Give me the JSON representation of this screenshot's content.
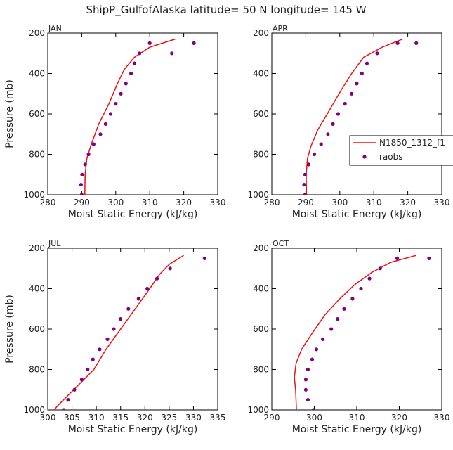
{
  "figure_title": "ShipP_GulfofAlaska  latitude= 50 N longitude= 145 W",
  "colors": {
    "model": "#ee1111",
    "raobs": "#800080",
    "axis": "#000000"
  },
  "legend": {
    "placement": "right of APR panel",
    "model_label": "N1850_1312_f1",
    "obs_label": "raobs"
  },
  "chart_data": [
    {
      "type": "line",
      "month": "JAN",
      "xlabel": "Moist Static Energy (kJ/kg)",
      "ylabel": "Pressure (mb)",
      "xlim": [
        280,
        330
      ],
      "xticks": [
        280,
        290,
        300,
        310,
        320,
        330
      ],
      "ylim": [
        200,
        1000
      ],
      "yticks": [
        200,
        400,
        600,
        800,
        1000
      ],
      "y_inverted": true,
      "series": [
        {
          "name": "N1850_1312_f1",
          "kind": "line",
          "x": [
            290.9,
            291.0,
            291.5,
            292.8,
            295.0,
            298.0,
            300.5,
            302.5,
            305.5,
            310.0,
            317.5
          ],
          "y": [
            1000,
            900,
            820,
            750,
            650,
            550,
            450,
            380,
            320,
            270,
            230
          ]
        },
        {
          "name": "raobs",
          "kind": "markers",
          "x": [
            290.0,
            289.8,
            290.1,
            291.0,
            292.0,
            293.5,
            295.5,
            297.0,
            298.5,
            300.0,
            301.5,
            303.0,
            304.5,
            305.5,
            307.0,
            310.0,
            316.5,
            323.0
          ],
          "y": [
            1000,
            950,
            900,
            850,
            800,
            750,
            700,
            650,
            600,
            550,
            500,
            450,
            400,
            350,
            300,
            250,
            300,
            250
          ]
        }
      ]
    },
    {
      "type": "line",
      "month": "APR",
      "xlabel": "Moist Static Energy (kJ/kg)",
      "ylabel": "",
      "xlim": [
        280,
        330
      ],
      "xticks": [
        280,
        290,
        300,
        310,
        320,
        330
      ],
      "ylim": [
        200,
        1000
      ],
      "yticks": [
        200,
        400,
        600,
        800,
        1000
      ],
      "y_inverted": true,
      "series": [
        {
          "name": "N1850_1312_f1",
          "kind": "line",
          "x": [
            290.2,
            290.1,
            290.5,
            291.5,
            293.5,
            297.0,
            300.5,
            303.5,
            307.0,
            312.5,
            318.5
          ],
          "y": [
            1000,
            900,
            820,
            760,
            680,
            580,
            480,
            400,
            320,
            270,
            230
          ]
        },
        {
          "name": "raobs",
          "kind": "markers",
          "x": [
            289.8,
            289.5,
            289.8,
            290.8,
            292.5,
            294.5,
            296.5,
            298.0,
            299.5,
            301.5,
            303.5,
            305.0,
            306.5,
            308.0,
            311.0,
            317.0,
            322.5
          ],
          "y": [
            1000,
            950,
            900,
            850,
            800,
            750,
            700,
            650,
            600,
            550,
            500,
            450,
            400,
            350,
            300,
            250,
            250
          ]
        }
      ]
    },
    {
      "type": "line",
      "month": "JUL",
      "xlabel": "Moist Static Energy (kJ/kg)",
      "ylabel": "Pressure (mb)",
      "xlim": [
        300,
        335
      ],
      "xticks": [
        300,
        305,
        310,
        315,
        320,
        325,
        330,
        335
      ],
      "ylim": [
        200,
        1000
      ],
      "yticks": [
        200,
        400,
        600,
        800,
        1000
      ],
      "y_inverted": true,
      "series": [
        {
          "name": "N1850_1312_f1",
          "kind": "line",
          "x": [
            301.0,
            302.0,
            304.5,
            307.0,
            309.5,
            312.0,
            315.0,
            318.0,
            321.0,
            323.0,
            325.0,
            328.0
          ],
          "y": [
            1010,
            980,
            920,
            860,
            800,
            700,
            600,
            500,
            400,
            330,
            280,
            235
          ]
        },
        {
          "name": "raobs",
          "kind": "markers",
          "x": [
            303.3,
            304.2,
            305.5,
            307.0,
            308.2,
            309.3,
            310.7,
            312.3,
            313.6,
            315.0,
            316.6,
            318.7,
            320.5,
            322.5,
            325.2,
            332.3
          ],
          "y": [
            1000,
            950,
            900,
            850,
            800,
            750,
            700,
            650,
            600,
            550,
            500,
            450,
            400,
            350,
            300,
            250
          ]
        }
      ]
    },
    {
      "type": "line",
      "month": "OCT",
      "xlabel": "Moist Static Energy (kJ/kg)",
      "ylabel": "",
      "xlim": [
        290,
        330
      ],
      "xticks": [
        290,
        300,
        310,
        320,
        330
      ],
      "ylim": [
        200,
        1000
      ],
      "yticks": [
        200,
        400,
        600,
        800,
        1000
      ],
      "y_inverted": true,
      "series": [
        {
          "name": "N1850_1312_f1",
          "kind": "line",
          "x": [
            295.8,
            295.6,
            295.3,
            295.7,
            297.0,
            299.5,
            302.5,
            306.0,
            309.5,
            313.5,
            318.0,
            324.0
          ],
          "y": [
            1000,
            900,
            840,
            770,
            700,
            620,
            530,
            450,
            380,
            320,
            270,
            235
          ]
        },
        {
          "name": "raobs",
          "kind": "markers",
          "x": [
            299.8,
            298.5,
            298.0,
            298.0,
            298.5,
            299.5,
            300.5,
            302.0,
            304.0,
            305.5,
            307.0,
            309.0,
            311.0,
            313.0,
            315.5,
            319.5,
            327.0
          ],
          "y": [
            1000,
            950,
            900,
            850,
            800,
            750,
            700,
            650,
            600,
            550,
            500,
            450,
            400,
            350,
            300,
            250,
            250
          ]
        }
      ]
    }
  ]
}
